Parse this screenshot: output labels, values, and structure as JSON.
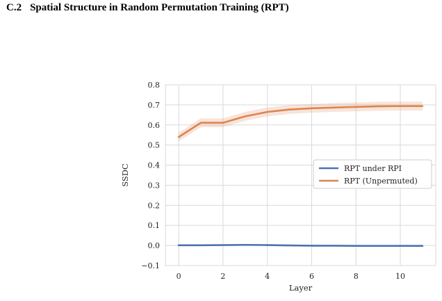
{
  "section": {
    "number": "C.2",
    "title": "Spatial Structure in Random Permutation Training (RPT)"
  },
  "chart_data": {
    "type": "line",
    "xlabel": "Layer",
    "ylabel": "SSDC",
    "xlim": [
      -0.6,
      11.6
    ],
    "ylim": [
      -0.1,
      0.8
    ],
    "x_ticks": [
      0,
      2,
      4,
      6,
      8,
      10
    ],
    "y_ticks": [
      -0.1,
      0.0,
      0.1,
      0.2,
      0.3,
      0.4,
      0.5,
      0.6,
      0.7,
      0.8
    ],
    "y_tick_labels": [
      "−0.1",
      "0.0",
      "0.1",
      "0.2",
      "0.3",
      "0.4",
      "0.5",
      "0.6",
      "0.7",
      "0.8"
    ],
    "grid": true,
    "legend_position": "right",
    "x": [
      0,
      1,
      2,
      3,
      4,
      5,
      6,
      7,
      8,
      9,
      10,
      11
    ],
    "series": [
      {
        "name": "RPT under RPI",
        "color": "#4c72b0",
        "values": [
          0.001,
          0.001,
          0.002,
          0.003,
          0.002,
          0.0,
          -0.001,
          -0.001,
          -0.002,
          -0.002,
          -0.002,
          -0.002
        ],
        "band": 0.003
      },
      {
        "name": "RPT (Unpermuted)",
        "color": "#dd8452",
        "values": [
          0.54,
          0.611,
          0.611,
          0.643,
          0.665,
          0.677,
          0.683,
          0.687,
          0.69,
          0.693,
          0.694,
          0.694
        ],
        "band": 0.022
      }
    ]
  }
}
